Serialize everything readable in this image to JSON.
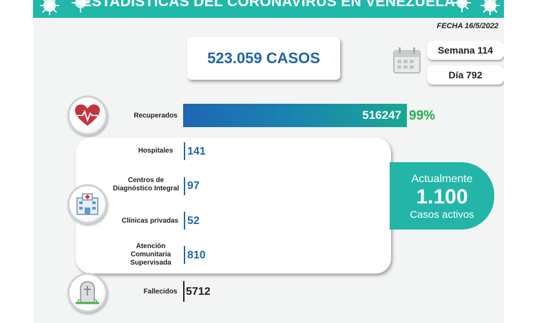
{
  "header": {
    "title": "ESTADÍSTICAS DEL CORONAVIRUS EN VENEZUELA"
  },
  "fecha": "FECHA 16/5/2022",
  "total_cases": "523.059 CASOS",
  "week": "Semana 114",
  "day": "Día 792",
  "recuperados": {
    "label": "Recuperados",
    "value": "516247",
    "percent": "99%"
  },
  "hospitalization": [
    {
      "label": "Hospitales",
      "value": "141"
    },
    {
      "label": "Centros de Diagnóstico Integral",
      "value": "97"
    },
    {
      "label": "Clínicas privadas",
      "value": "52"
    },
    {
      "label": "Atención Comunitaria Supervisada",
      "value": "810"
    }
  ],
  "active": {
    "line1": "Actualmente",
    "value": "1.100",
    "line3": "Casos activos"
  },
  "fallecidos": {
    "label": "Fallecidos",
    "value": "5712"
  },
  "icons": [
    "virus-icon",
    "calendar-icon",
    "heart-pulse-icon",
    "hospital-icon",
    "tombstone-icon"
  ],
  "colors": {
    "header": "#20b8a8",
    "primary_blue": "#1f66a8",
    "recovered_green": "#20b050",
    "active_teal": "#22b5a8"
  }
}
